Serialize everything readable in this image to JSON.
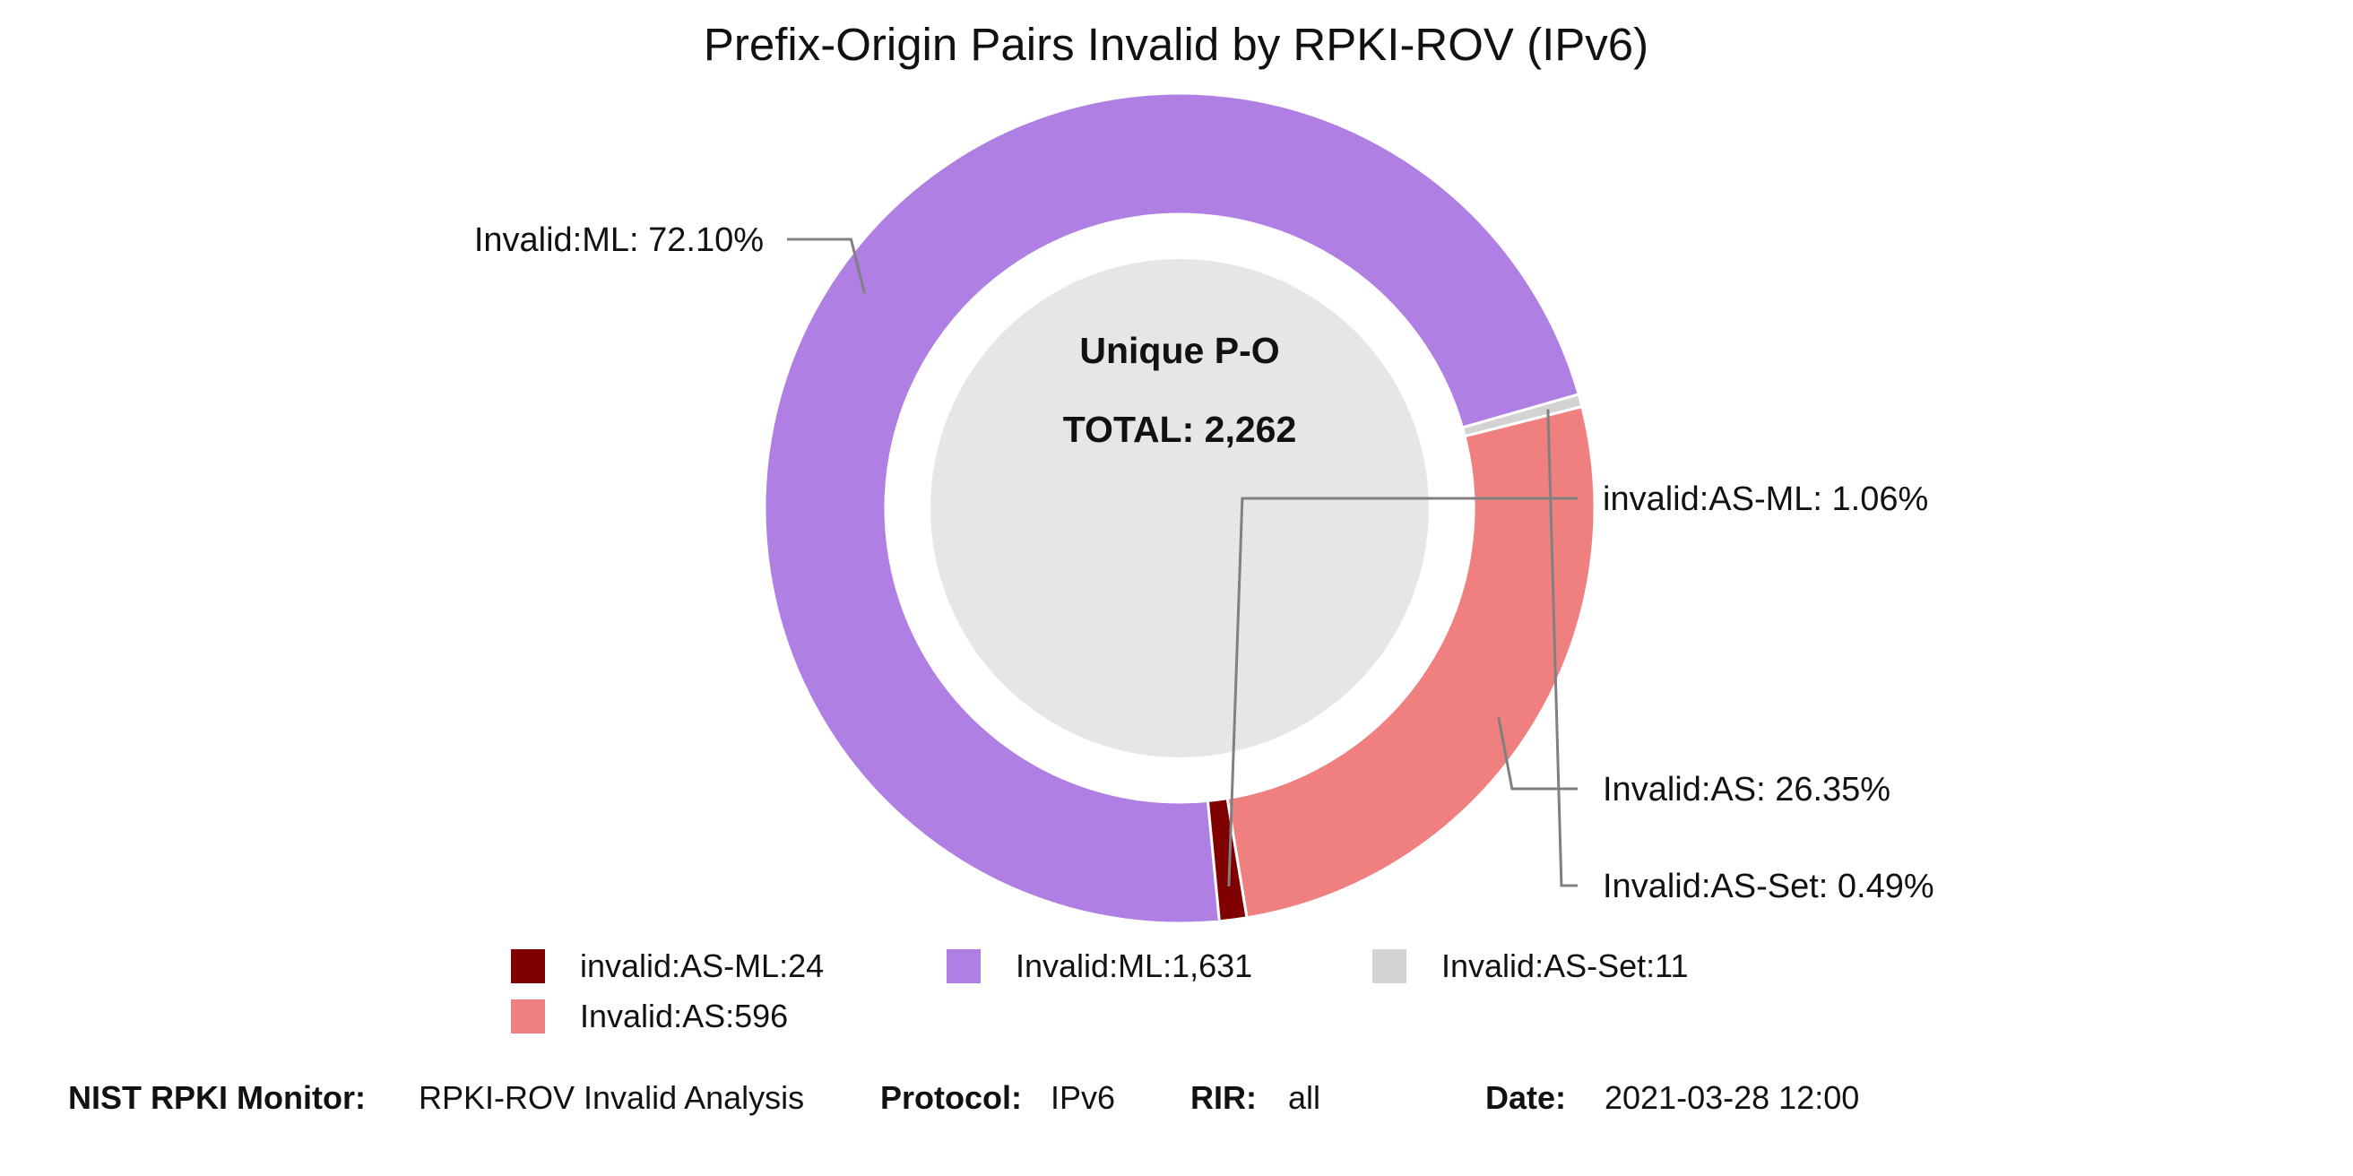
{
  "chart_data": {
    "type": "pie",
    "title": "Prefix-Origin Pairs Invalid by RPKI-ROV (IPv6)",
    "center": {
      "line1": "Unique P-O",
      "line2": "TOTAL: 2,262"
    },
    "total": 2262,
    "slices": [
      {
        "label": "Invalid:ML",
        "value": 1631,
        "percent": 72.1,
        "color": "#af7fe3",
        "slice_label": "Invalid:ML: 72.10%",
        "legend": "Invalid:ML:1,631"
      },
      {
        "label": "Invalid:AS-Set",
        "value": 11,
        "percent": 0.49,
        "color": "#d3d3d3",
        "slice_label": "Invalid:AS-Set: 0.49%",
        "legend": "Invalid:AS-Set:11"
      },
      {
        "label": "Invalid:AS",
        "value": 596,
        "percent": 26.35,
        "color": "#f08080",
        "slice_label": "Invalid:AS: 26.35%",
        "legend": "Invalid:AS:596"
      },
      {
        "label": "invalid:AS-ML",
        "value": 24,
        "percent": 1.06,
        "color": "#800000",
        "slice_label": "invalid:AS-ML: 1.06%",
        "legend": "invalid:AS-ML:24"
      }
    ],
    "legend_order": [
      "invalid:AS-ML",
      "Invalid:ML",
      "Invalid:AS-Set",
      "Invalid:AS"
    ],
    "center_fill": "#e6e6e6",
    "leader_color": "#808080"
  },
  "footer": {
    "monitor_key": "NIST RPKI Monitor:",
    "monitor_val": "RPKI-ROV Invalid Analysis",
    "protocol_key": "Protocol:",
    "protocol_val": "IPv6",
    "rir_key": "RIR:",
    "rir_val": "all",
    "date_key": "Date:",
    "date_val": "2021-03-28 12:00"
  }
}
